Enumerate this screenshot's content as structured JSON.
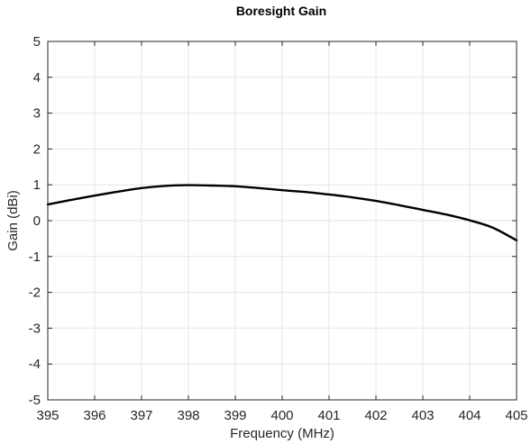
{
  "chart_data": {
    "type": "line",
    "title": "Boresight Gain",
    "xlabel": "Frequency (MHz)",
    "ylabel": "Gain (dBi)",
    "xlim": [
      395,
      405
    ],
    "ylim": [
      -5,
      5
    ],
    "xticks": [
      395,
      396,
      397,
      398,
      399,
      400,
      401,
      402,
      403,
      404,
      405
    ],
    "yticks": [
      -5,
      -4,
      -3,
      -2,
      -1,
      0,
      1,
      2,
      3,
      4,
      5
    ],
    "grid": true,
    "line_color": "#000000",
    "series": [
      {
        "x": [
          395,
          395.5,
          396,
          396.5,
          397,
          397.5,
          398,
          398.5,
          399,
          399.5,
          400,
          400.5,
          401,
          401.5,
          402,
          402.5,
          403,
          403.5,
          404,
          404.5,
          405
        ],
        "y": [
          0.45,
          0.58,
          0.7,
          0.81,
          0.91,
          0.97,
          0.99,
          0.98,
          0.96,
          0.91,
          0.85,
          0.8,
          0.73,
          0.65,
          0.55,
          0.43,
          0.3,
          0.17,
          0.01,
          -0.2,
          -0.55
        ]
      }
    ]
  }
}
